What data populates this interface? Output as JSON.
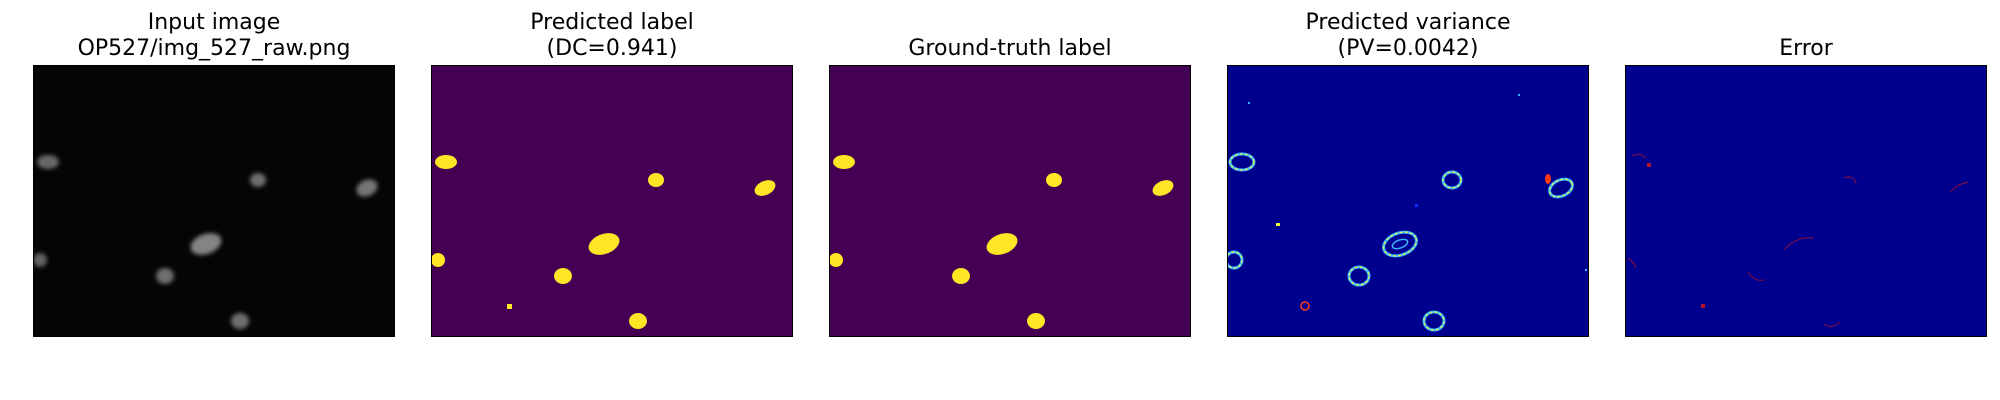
{
  "panels": [
    {
      "id": "input",
      "title_lines": [
        "Input image",
        "OP527/img_527_raw.png"
      ],
      "colors": {
        "background": "#050505",
        "object": "#8a8a8a"
      }
    },
    {
      "id": "predicted-label",
      "title_lines": [
        "Predicted label",
        "(DC=0.941)"
      ],
      "colors": {
        "background": "#440154",
        "object": "#fde725"
      }
    },
    {
      "id": "ground-truth",
      "title_lines": [
        "Ground-truth label"
      ],
      "colors": {
        "background": "#440154",
        "object": "#fde725"
      }
    },
    {
      "id": "predicted-variance",
      "title_lines": [
        "Predicted variance",
        "(PV=0.0042)"
      ],
      "colors": {
        "background": "#00008f",
        "ring_outer": "#3fb4ff",
        "ring_mid": "#e6ff3a",
        "ring_hot": "#ff3a12"
      }
    },
    {
      "id": "error",
      "title_lines": [
        "Error"
      ],
      "colors": {
        "background": "#00008f",
        "mark": "#9a1030"
      }
    }
  ]
}
